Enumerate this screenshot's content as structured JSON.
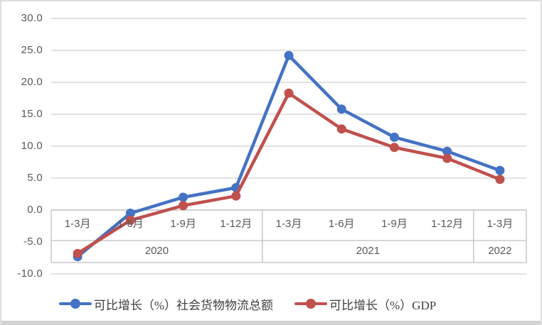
{
  "chart_data": {
    "type": "line",
    "title": "",
    "xlabel": "",
    "ylabel": "",
    "categories": [
      "1-3月",
      "1-6月",
      "1-9月",
      "1-12月",
      "1-3月",
      "1-6月",
      "1-9月",
      "1-12月",
      "1-3月"
    ],
    "year_groups": [
      {
        "label": "2020",
        "start": 0,
        "span": 4
      },
      {
        "label": "2021",
        "start": 4,
        "span": 4
      },
      {
        "label": "2022",
        "start": 8,
        "span": 1
      }
    ],
    "series": [
      {
        "name": "可比增长（%）社会货物物流总额",
        "color": "#4472C4",
        "values": [
          -7.3,
          -0.5,
          2.0,
          3.5,
          24.2,
          15.8,
          11.4,
          9.2,
          6.2
        ]
      },
      {
        "name": "可比增长（%）GDP",
        "color": "#C0504D",
        "values": [
          -6.8,
          -1.6,
          0.7,
          2.2,
          18.3,
          12.7,
          9.8,
          8.1,
          4.8
        ]
      }
    ],
    "ylim": [
      -10,
      30
    ],
    "y_ticks": [
      "30.0",
      "25.0",
      "20.0",
      "15.0",
      "10.0",
      "5.0",
      "0.0",
      "-5.0",
      "-10.0"
    ],
    "y_tick_values": [
      30,
      25,
      20,
      15,
      10,
      5,
      0,
      -5,
      -10
    ],
    "grid": true,
    "legend_position": "bottom",
    "colors": {
      "gridline": "#D9D9D9",
      "axis_line": "#BFBFBF",
      "tick_label": "#595959",
      "legend_text": "#404040",
      "bottom_bar": "#D3D3D3"
    }
  }
}
